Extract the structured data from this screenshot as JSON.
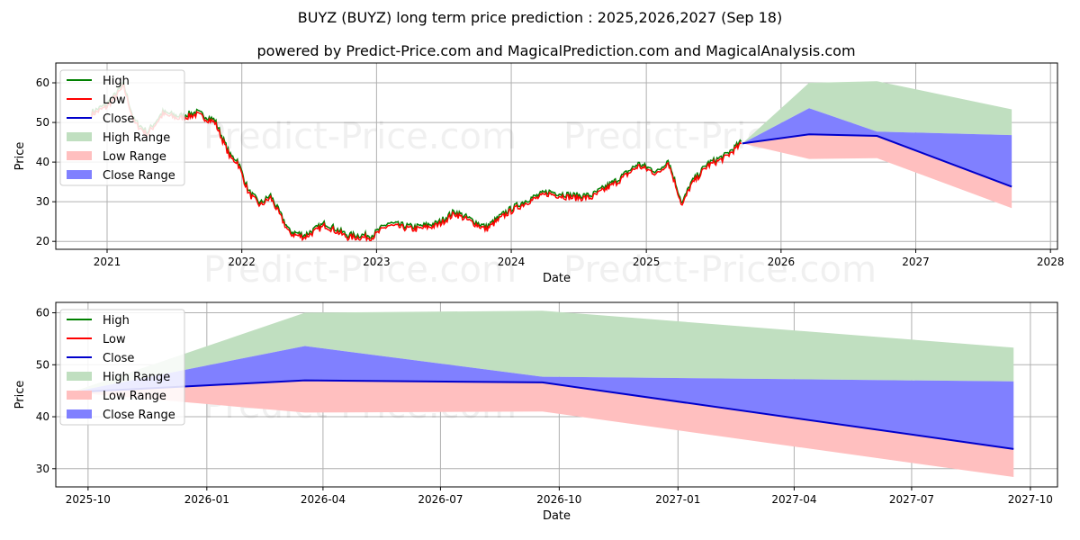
{
  "chart_data": [
    {
      "type": "line",
      "title": "BUYZ (BUYZ) long term price prediction : 2025,2026,2027 (Sep 18)",
      "subtitle": "powered by Predict-Price.com and MagicalPrediction.com and MagicalAnalysis.com",
      "xlabel": "Date",
      "ylabel": "Price",
      "xlim": [
        "2020-08-15",
        "2028-01-20"
      ],
      "ylim": [
        18,
        65
      ],
      "x_ticks": [
        "2021",
        "2022",
        "2023",
        "2024",
        "2025",
        "2026",
        "2027",
        "2028"
      ],
      "y_ticks": [
        20,
        30,
        40,
        50,
        60
      ],
      "grid": true,
      "legend": [
        "High",
        "Low",
        "Close",
        "High Range",
        "Low Range",
        "Close Range"
      ],
      "legend_position": "top-left",
      "history": {
        "dates": [
          "2020-11-20",
          "2021-01-01",
          "2021-02-15",
          "2021-03-15",
          "2021-04-20",
          "2021-06-01",
          "2021-07-15",
          "2021-09-01",
          "2021-10-20",
          "2021-12-01",
          "2021-12-20",
          "2022-01-20",
          "2022-02-20",
          "2022-03-20",
          "2022-05-10",
          "2022-06-20",
          "2022-08-15",
          "2022-10-15",
          "2022-12-20",
          "2023-02-01",
          "2023-04-15",
          "2023-06-15",
          "2023-08-01",
          "2023-10-25",
          "2023-12-20",
          "2024-02-15",
          "2024-04-10",
          "2024-06-15",
          "2024-08-05",
          "2024-10-15",
          "2024-12-10",
          "2025-02-01",
          "2025-03-01",
          "2025-04-08",
          "2025-05-01",
          "2025-06-15",
          "2025-08-01",
          "2025-09-18"
        ],
        "close": [
          52,
          54,
          59,
          50,
          47,
          52,
          51,
          52,
          50,
          41,
          40,
          32,
          29,
          31,
          22,
          21,
          24,
          21,
          21,
          24,
          23,
          24,
          27,
          23,
          27,
          30,
          32,
          31,
          31,
          35,
          39,
          37,
          40,
          29,
          34,
          39,
          41,
          44.7
        ]
      },
      "forecast": {
        "dates": [
          "2025-09-18",
          "2026-03-18",
          "2026-09-18",
          "2027-09-18"
        ],
        "high": [
          44.7,
          60.0,
          60.4,
          53.3
        ],
        "close_range_high": [
          44.7,
          53.6,
          47.7,
          46.8
        ],
        "close": [
          44.7,
          47.0,
          46.6,
          33.8
        ],
        "low": [
          44.7,
          40.8,
          41.0,
          28.4
        ]
      }
    },
    {
      "type": "line",
      "xlabel": "Date",
      "ylabel": "Price",
      "xlim": [
        "2025-09-06",
        "2027-10-22"
      ],
      "ylim": [
        26.5,
        62
      ],
      "x_ticks": [
        "2025-10",
        "2026-01",
        "2026-04",
        "2026-07",
        "2026-10",
        "2027-01",
        "2027-04",
        "2027-07",
        "2027-10"
      ],
      "y_ticks": [
        30,
        40,
        50,
        60
      ],
      "grid": true,
      "legend": [
        "High",
        "Low",
        "Close",
        "High Range",
        "Low Range",
        "Close Range"
      ],
      "legend_position": "top-left",
      "forecast": {
        "dates": [
          "2025-09-18",
          "2026-03-18",
          "2026-09-18",
          "2027-09-18"
        ],
        "high": [
          44.7,
          60.0,
          60.4,
          53.3
        ],
        "close_range_high": [
          44.7,
          53.6,
          47.7,
          46.8
        ],
        "close": [
          44.7,
          47.0,
          46.6,
          33.8
        ],
        "low": [
          44.7,
          40.8,
          41.0,
          28.4
        ]
      }
    }
  ],
  "watermark": "Predict-Price.com",
  "colors": {
    "high": "#008000",
    "low": "#ff0000",
    "close": "#0000cc",
    "high_range": "#c0dfc0",
    "low_range": "#ffbfbf",
    "close_range": "#8080ff"
  }
}
